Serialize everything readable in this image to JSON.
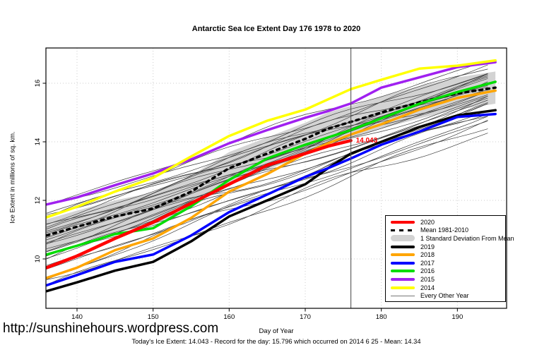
{
  "title": "Antarctic Sea Ice Extent Day 176 1978 to 2020",
  "footer": {
    "url": "http://sunshinehours.wordpress.com",
    "stats": "Today's Ice Extent: 14.043  - Record for the day: 15.796 which occurred on 2014 6 25  - Mean: 14.34"
  },
  "colors": {
    "red": "#ff0000",
    "orange": "#ffa500",
    "blue": "#0000ff",
    "green": "#00dd00",
    "purple": "#a020f0",
    "yellow": "#ffff00",
    "black": "#000000",
    "band": "#d3d3d3",
    "thin_line": "#3c3c3c",
    "grid": "#cccccc",
    "marker_line": "#555555"
  },
  "chart_data": {
    "type": "line",
    "title": "Antarctic Sea Ice Extent Day 176 1978 to 2020",
    "xlabel": "Day of Year",
    "ylabel": "Ice Extent in millions of sq. km.",
    "xlim": [
      135.9,
      196.2
    ],
    "ylim": [
      8.6,
      17.2
    ],
    "x_ticks": [
      140,
      150,
      160,
      170,
      180,
      190
    ],
    "y_ticks": [
      10,
      12,
      14,
      16
    ],
    "grid": true,
    "legend_position": "right-bottom-inside",
    "day_marker": 176,
    "annotation": {
      "text": "14.043",
      "day": 176,
      "value": 14.043
    },
    "days": [
      136,
      140,
      145,
      150,
      155,
      160,
      165,
      170,
      173,
      176,
      180,
      185,
      190,
      195
    ],
    "series": [
      {
        "name": "2020",
        "color": "red",
        "width": 4.5,
        "values": [
          9.7,
          10.1,
          10.7,
          11.25,
          11.9,
          12.55,
          13.2,
          13.6,
          13.85,
          14.043
        ]
      },
      {
        "name": "2019",
        "color": "black",
        "width": 3.5,
        "values": [
          8.9,
          9.2,
          9.6,
          9.9,
          10.6,
          11.45,
          12.0,
          12.55,
          13.1,
          13.6,
          14.0,
          14.5,
          14.9,
          15.08
        ]
      },
      {
        "name": "2018",
        "color": "orange",
        "width": 3.5,
        "values": [
          9.35,
          9.7,
          10.3,
          10.7,
          11.4,
          12.3,
          12.9,
          13.6,
          13.95,
          14.25,
          14.6,
          15.1,
          15.5,
          15.75
        ]
      },
      {
        "name": "2017",
        "color": "blue",
        "width": 3.5,
        "values": [
          9.1,
          9.45,
          9.9,
          10.15,
          10.8,
          11.6,
          12.2,
          12.8,
          13.1,
          13.43,
          13.9,
          14.35,
          14.85,
          14.95
        ]
      },
      {
        "name": "2016",
        "color": "green",
        "width": 3.5,
        "values": [
          10.15,
          10.45,
          10.85,
          11.05,
          11.8,
          12.7,
          13.43,
          13.9,
          14.15,
          14.4,
          14.8,
          15.3,
          15.7,
          16.05
        ]
      },
      {
        "name": "2015",
        "color": "purple",
        "width": 3.5,
        "values": [
          11.86,
          12.1,
          12.52,
          12.92,
          13.4,
          13.95,
          14.4,
          14.82,
          15.05,
          15.31,
          15.85,
          16.2,
          16.55,
          16.72
        ]
      },
      {
        "name": "2014",
        "color": "yellow",
        "width": 3.5,
        "values": [
          11.42,
          11.78,
          12.3,
          12.77,
          13.5,
          14.2,
          14.72,
          15.1,
          15.45,
          15.8,
          16.12,
          16.5,
          16.6,
          16.78
        ]
      }
    ],
    "mean_1981_2010": {
      "name": "Mean 1981-2010",
      "style": "dashed",
      "color": "black",
      "values": [
        10.8,
        11.1,
        11.45,
        11.72,
        12.3,
        13.1,
        13.6,
        14.1,
        14.45,
        14.68,
        15.0,
        15.35,
        15.65,
        15.85
      ]
    },
    "std_band": {
      "name": "1 Standard Deviation From Mean",
      "half_width": 0.55
    },
    "background_years": {
      "name": "Every Other Year",
      "lines": [
        {
          "s": 9.0,
          "e": 14.6,
          "p": 0.5,
          "a": 0.12
        },
        {
          "s": 9.2,
          "e": 14.45,
          "p": 2.1,
          "a": 0.15
        },
        {
          "s": 9.35,
          "e": 15.0,
          "p": 4.0,
          "a": 0.1
        },
        {
          "s": 9.55,
          "e": 15.25,
          "p": 1.2,
          "a": 0.13
        },
        {
          "s": 9.7,
          "e": 14.85,
          "p": 3.3,
          "a": 0.09
        },
        {
          "s": 9.85,
          "e": 15.5,
          "p": 5.1,
          "a": 0.14
        },
        {
          "s": 9.95,
          "e": 15.1,
          "p": 0.9,
          "a": 0.11
        },
        {
          "s": 10.05,
          "e": 15.65,
          "p": 2.8,
          "a": 0.12
        },
        {
          "s": 10.15,
          "e": 15.35,
          "p": 4.6,
          "a": 0.1
        },
        {
          "s": 10.2,
          "e": 15.9,
          "p": 1.7,
          "a": 0.13
        },
        {
          "s": 10.3,
          "e": 15.55,
          "p": 3.9,
          "a": 0.09
        },
        {
          "s": 10.35,
          "e": 15.2,
          "p": 5.6,
          "a": 0.15
        },
        {
          "s": 10.45,
          "e": 16.05,
          "p": 0.3,
          "a": 0.1
        },
        {
          "s": 10.5,
          "e": 15.7,
          "p": 2.4,
          "a": 0.12
        },
        {
          "s": 10.6,
          "e": 15.4,
          "p": 4.2,
          "a": 0.11
        },
        {
          "s": 10.65,
          "e": 16.15,
          "p": 1.0,
          "a": 0.13
        },
        {
          "s": 10.7,
          "e": 15.85,
          "p": 3.1,
          "a": 0.1
        },
        {
          "s": 10.8,
          "e": 16.25,
          "p": 5.3,
          "a": 0.12
        },
        {
          "s": 10.85,
          "e": 15.95,
          "p": 0.7,
          "a": 0.14
        },
        {
          "s": 10.9,
          "e": 16.4,
          "p": 2.6,
          "a": 0.1
        },
        {
          "s": 11.0,
          "e": 16.05,
          "p": 4.8,
          "a": 0.12
        },
        {
          "s": 11.05,
          "e": 15.75,
          "p": 1.5,
          "a": 0.11
        },
        {
          "s": 11.15,
          "e": 16.5,
          "p": 3.6,
          "a": 0.13
        },
        {
          "s": 11.25,
          "e": 16.15,
          "p": 5.8,
          "a": 0.1
        },
        {
          "s": 11.35,
          "e": 16.6,
          "p": 0.2,
          "a": 0.12
        },
        {
          "s": 11.45,
          "e": 16.3,
          "p": 2.2,
          "a": 0.14
        },
        {
          "s": 11.6,
          "e": 16.7,
          "p": 4.4,
          "a": 0.1
        },
        {
          "s": 11.75,
          "e": 16.45,
          "p": 1.8,
          "a": 0.12
        },
        {
          "s": 11.9,
          "e": 16.9,
          "p": 3.0,
          "a": 0.11
        },
        {
          "s": 9.45,
          "e": 14.7,
          "p": 5.0,
          "a": 0.13
        },
        {
          "s": 10.0,
          "e": 14.95,
          "p": 0.0,
          "a": 0.12
        },
        {
          "s": 11.5,
          "e": 16.0,
          "p": 2.9,
          "a": 0.1
        }
      ]
    },
    "legend": [
      {
        "label": "2020",
        "swatch": "thick",
        "color": "red"
      },
      {
        "label": "Mean 1981-2010",
        "swatch": "dashed",
        "color": "black"
      },
      {
        "label": "1 Standard Deviation From Mean",
        "swatch": "band",
        "color": "band"
      },
      {
        "label": "2019",
        "swatch": "thick",
        "color": "black"
      },
      {
        "label": "2018",
        "swatch": "thick",
        "color": "orange"
      },
      {
        "label": "2017",
        "swatch": "thick",
        "color": "blue"
      },
      {
        "label": "2016",
        "swatch": "thick",
        "color": "green"
      },
      {
        "label": "2015",
        "swatch": "thick",
        "color": "purple"
      },
      {
        "label": "2014",
        "swatch": "thick",
        "color": "yellow"
      },
      {
        "label": "Every Other Year",
        "swatch": "thin",
        "color": "thin_line"
      }
    ]
  }
}
